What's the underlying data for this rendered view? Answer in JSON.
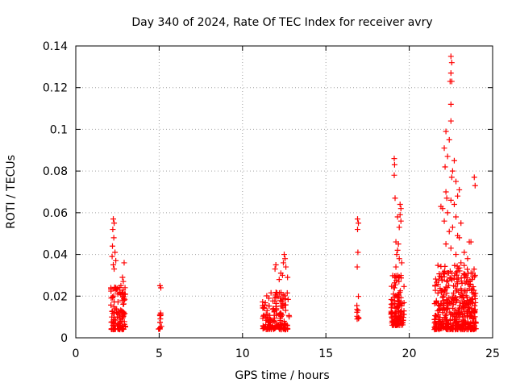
{
  "chart_data": {
    "type": "scatter",
    "title": "Day 340 of 2024, Rate Of TEC Index for receiver avry",
    "xlabel": "GPS time / hours",
    "ylabel": "ROTI / TECUs",
    "xlim": [
      0,
      25
    ],
    "ylim": [
      0,
      0.14
    ],
    "xticks": [
      0,
      5,
      10,
      15,
      20,
      25
    ],
    "xtick_labels": [
      "0",
      "5",
      "10",
      "15",
      "20",
      "25"
    ],
    "yticks": [
      0,
      0.02,
      0.04,
      0.06,
      0.08,
      0.1,
      0.12,
      0.14
    ],
    "ytick_labels": [
      "0",
      "0.02",
      "0.04",
      "0.06",
      "0.08",
      "0.1",
      "0.12",
      "0.14"
    ],
    "grid": true,
    "marker": "+",
    "color": "#ff0000",
    "clusters": [
      {
        "x_range": [
          2.1,
          3.0
        ],
        "y_base": [
          0.004,
          0.025
        ],
        "count": 110,
        "outliers": [
          [
            2.25,
            0.057
          ],
          [
            2.3,
            0.055
          ],
          [
            2.22,
            0.052
          ],
          [
            2.28,
            0.048
          ],
          [
            2.2,
            0.044
          ],
          [
            2.35,
            0.041
          ],
          [
            2.18,
            0.039
          ],
          [
            2.4,
            0.037
          ],
          [
            2.25,
            0.035
          ],
          [
            2.9,
            0.036
          ],
          [
            2.3,
            0.033
          ],
          [
            2.8,
            0.029
          ],
          [
            2.85,
            0.027
          ]
        ]
      },
      {
        "x_range": [
          4.95,
          5.15
        ],
        "y_base": [
          0.004,
          0.016
        ],
        "count": 14,
        "outliers": [
          [
            5.05,
            0.025
          ],
          [
            5.1,
            0.024
          ]
        ]
      },
      {
        "x_range": [
          11.2,
          12.8
        ],
        "y_base": [
          0.004,
          0.022
        ],
        "count": 150,
        "outliers": [
          [
            12.5,
            0.04
          ],
          [
            12.55,
            0.038
          ],
          [
            12.45,
            0.036
          ],
          [
            12.0,
            0.035
          ],
          [
            11.95,
            0.033
          ],
          [
            12.6,
            0.034
          ],
          [
            12.3,
            0.031
          ],
          [
            12.4,
            0.03
          ],
          [
            12.2,
            0.028
          ],
          [
            12.7,
            0.029
          ]
        ]
      },
      {
        "x_range": [
          16.85,
          17.0
        ],
        "y_base": [
          0.009,
          0.02
        ],
        "count": 10,
        "outliers": [
          [
            16.9,
            0.057
          ],
          [
            16.95,
            0.055
          ],
          [
            16.9,
            0.052
          ],
          [
            16.92,
            0.041
          ],
          [
            16.88,
            0.034
          ]
        ]
      },
      {
        "x_range": [
          18.9,
          19.7
        ],
        "y_base": [
          0.006,
          0.03
        ],
        "count": 130,
        "outliers": [
          [
            19.1,
            0.086
          ],
          [
            19.12,
            0.083
          ],
          [
            19.1,
            0.078
          ],
          [
            19.15,
            0.067
          ],
          [
            19.45,
            0.064
          ],
          [
            19.5,
            0.062
          ],
          [
            19.45,
            0.059
          ],
          [
            19.5,
            0.056
          ],
          [
            19.3,
            0.058
          ],
          [
            19.4,
            0.053
          ],
          [
            19.2,
            0.046
          ],
          [
            19.35,
            0.045
          ],
          [
            19.3,
            0.042
          ],
          [
            19.25,
            0.04
          ],
          [
            19.4,
            0.038
          ],
          [
            19.55,
            0.036
          ],
          [
            19.2,
            0.034
          ]
        ]
      },
      {
        "x_range": [
          21.5,
          24.0
        ],
        "y_base": [
          0.004,
          0.035
        ],
        "count": 420,
        "outliers": [
          [
            22.5,
            0.135
          ],
          [
            22.55,
            0.132
          ],
          [
            22.5,
            0.127
          ],
          [
            22.45,
            0.123
          ],
          [
            22.55,
            0.123
          ],
          [
            22.5,
            0.112
          ],
          [
            22.5,
            0.104
          ],
          [
            22.2,
            0.099
          ],
          [
            22.4,
            0.095
          ],
          [
            22.1,
            0.091
          ],
          [
            22.3,
            0.087
          ],
          [
            22.7,
            0.085
          ],
          [
            22.15,
            0.082
          ],
          [
            22.6,
            0.08
          ],
          [
            22.55,
            0.077
          ],
          [
            23.9,
            0.077
          ],
          [
            22.8,
            0.075
          ],
          [
            23.95,
            0.073
          ],
          [
            22.2,
            0.07
          ],
          [
            23.0,
            0.071
          ],
          [
            22.9,
            0.068
          ],
          [
            22.25,
            0.067
          ],
          [
            22.5,
            0.066
          ],
          [
            22.7,
            0.064
          ],
          [
            21.9,
            0.063
          ],
          [
            22.0,
            0.062
          ],
          [
            22.3,
            0.06
          ],
          [
            22.8,
            0.058
          ],
          [
            22.1,
            0.056
          ],
          [
            23.1,
            0.055
          ],
          [
            22.6,
            0.053
          ],
          [
            22.4,
            0.051
          ],
          [
            22.9,
            0.049
          ],
          [
            23.0,
            0.048
          ],
          [
            23.6,
            0.046
          ],
          [
            23.7,
            0.046
          ],
          [
            22.2,
            0.045
          ],
          [
            22.5,
            0.043
          ],
          [
            23.3,
            0.041
          ],
          [
            22.8,
            0.04
          ],
          [
            23.5,
            0.038
          ],
          [
            23.1,
            0.036
          ],
          [
            23.8,
            0.031
          ],
          [
            23.95,
            0.03
          ]
        ]
      }
    ]
  }
}
